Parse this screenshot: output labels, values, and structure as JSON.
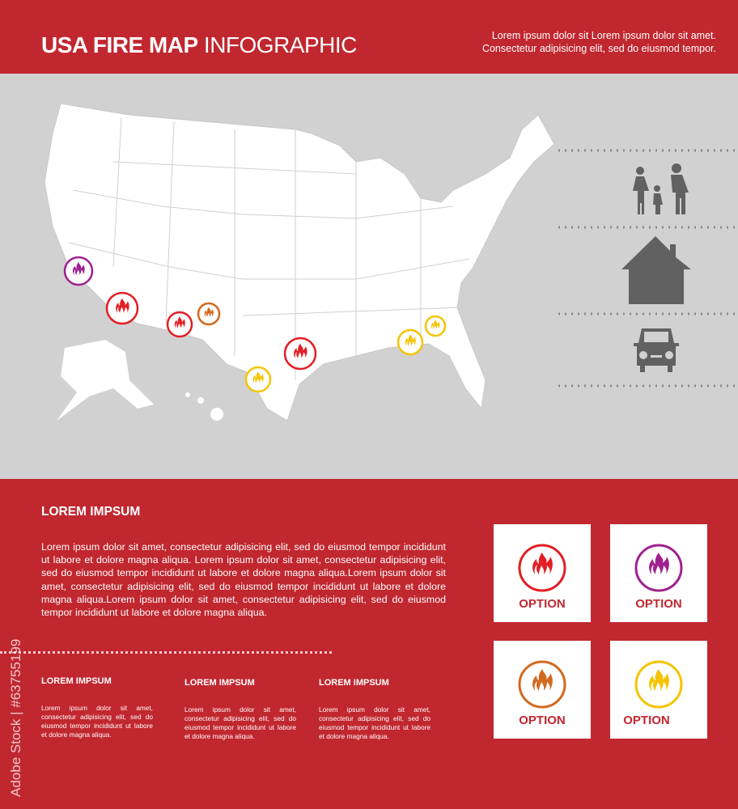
{
  "header": {
    "title_bold": "USA FIRE MAP",
    "title_light": "INFOGRAPHIC",
    "text_line1": "Lorem ipsum dolor sit Lorem ipsum dolor sit amet.",
    "text_line2": "Consectetur adipisicing elit, sed do eiusmod tempor."
  },
  "map": {
    "land_color": "#ffffff",
    "sea_color": "#d1d1d1",
    "legend_icons": [
      "family-icon",
      "house-icon",
      "car-icon"
    ],
    "icon_color": "#616161",
    "markers": [
      {
        "color": "#a0208f"
      },
      {
        "color": "#e31e24"
      },
      {
        "color": "#e31e24"
      },
      {
        "color": "#d2691e"
      },
      {
        "color": "#f5c400"
      },
      {
        "color": "#e31e24"
      },
      {
        "color": "#f5c400"
      },
      {
        "color": "#f5c400"
      }
    ]
  },
  "main": {
    "heading": "LOREM IMPSUM",
    "paragraph": "Lorem ipsum dolor sit amet, consectetur adipisicing elit, sed do eiusmod tempor incididunt ut labore et dolore magna aliqua. Lorem ipsum dolor sit amet, consectetur adipisicing elit, sed do eiusmod tempor incididunt ut labore et dolore magna aliqua.Lorem ipsum dolor sit amet, consectetur adipisicing elit, sed do eiusmod tempor incididunt ut labore et dolore magna aliqua.Lorem ipsum dolor sit amet, consectetur adipisicing elit, sed do eiusmod tempor incididunt ut labore et dolore magna aliqua."
  },
  "columns": [
    {
      "heading": "LOREM IMPSUM",
      "text": "Lorem ipsum dolor sit amet, consectetur adipisicing elit, sed do eiusmod tempor incididunt ut labore et dolore magna aliqua."
    },
    {
      "heading": "LOREM IMPSUM",
      "text": "Lorem ipsum dolor sit amet, consectetur adipisicing elit, sed do eiusmod tempor incididunt ut labore et dolore magna aliqua."
    },
    {
      "heading": "LOREM IMPSUM",
      "text": "Lorem ipsum dolor sit amet, consectetur adipisicing elit, sed do eiusmod tempor incididunt ut labore et dolore magna aliqua."
    }
  ],
  "options": [
    {
      "label": "OPTION",
      "color": "#e31e24"
    },
    {
      "label": "OPTION",
      "color": "#a0208f"
    },
    {
      "label": "OPTION",
      "color": "#d2691e"
    },
    {
      "label": "OPTION",
      "color": "#f5c400"
    }
  ],
  "colors": {
    "brand_red": "#c1272f"
  },
  "watermark": "Adobe Stock | #63755199"
}
